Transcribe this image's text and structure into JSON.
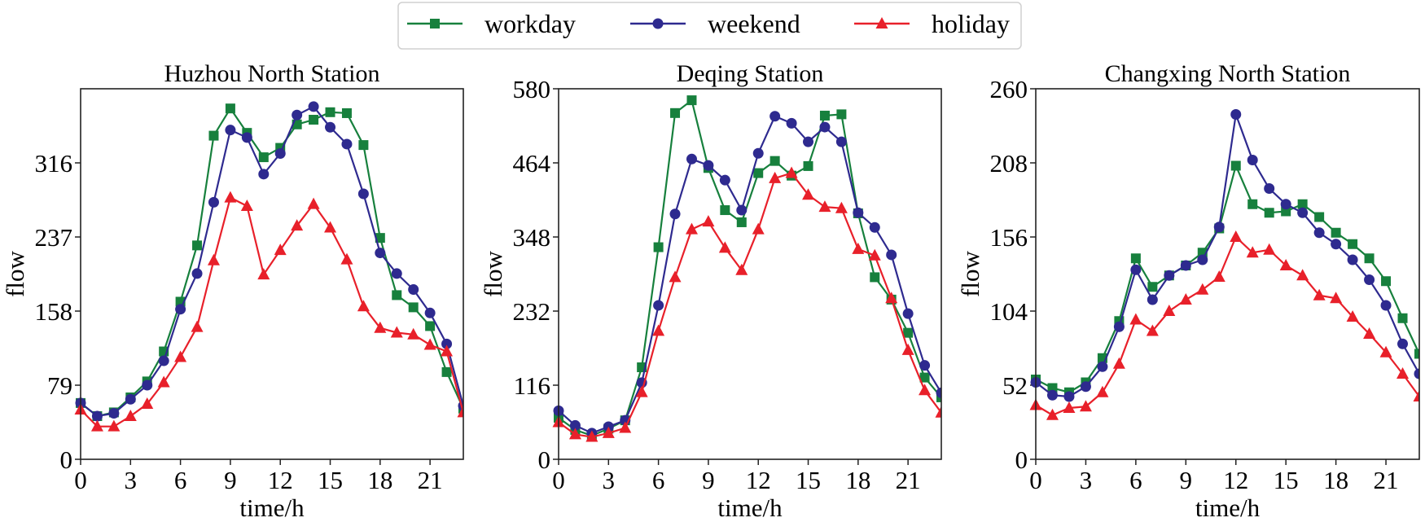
{
  "legend": {
    "position": "top-center",
    "entries": [
      {
        "label": "workday",
        "marker": "square",
        "color": "#17803d"
      },
      {
        "label": "weekend",
        "marker": "circle",
        "color": "#2e2a8f"
      },
      {
        "label": "holiday",
        "marker": "triangle",
        "color": "#e8202a"
      }
    ]
  },
  "chart_data": [
    {
      "type": "line",
      "title": "Huzhou North Station",
      "xlabel": "time/h",
      "ylabel": "flow",
      "xlim": [
        0,
        23
      ],
      "ylim": [
        0,
        395
      ],
      "xticks": [
        0,
        3,
        6,
        9,
        12,
        15,
        18,
        21
      ],
      "yticks": [
        0,
        79,
        158,
        237,
        316
      ],
      "grid": false,
      "x": [
        0,
        1,
        2,
        3,
        4,
        5,
        6,
        7,
        8,
        9,
        10,
        11,
        12,
        13,
        14,
        15,
        16,
        17,
        18,
        19,
        20,
        21,
        22,
        23
      ],
      "series": [
        {
          "name": "workday",
          "values": [
            60,
            46,
            50,
            66,
            83,
            115,
            168,
            228,
            345,
            374,
            348,
            322,
            332,
            357,
            362,
            370,
            369,
            335,
            236,
            175,
            162,
            142,
            93,
            54
          ]
        },
        {
          "name": "weekend",
          "values": [
            60,
            46,
            49,
            64,
            79,
            105,
            160,
            198,
            274,
            351,
            343,
            304,
            326,
            367,
            376,
            354,
            336,
            283,
            220,
            198,
            181,
            156,
            123,
            57
          ]
        },
        {
          "name": "holiday",
          "values": [
            53,
            35,
            35,
            46,
            59,
            82,
            109,
            141,
            212,
            279,
            270,
            197,
            223,
            249,
            272,
            247,
            213,
            163,
            140,
            135,
            133,
            122,
            115,
            50
          ]
        }
      ]
    },
    {
      "type": "line",
      "title": "Deqing Station",
      "xlabel": "time/h",
      "ylabel": "flow",
      "xlim": [
        0,
        23
      ],
      "ylim": [
        0,
        580
      ],
      "xticks": [
        0,
        3,
        6,
        9,
        12,
        15,
        18,
        21
      ],
      "yticks": [
        0,
        116,
        232,
        348,
        464,
        580
      ],
      "grid": false,
      "x": [
        0,
        1,
        2,
        3,
        4,
        5,
        6,
        7,
        8,
        9,
        10,
        11,
        12,
        13,
        14,
        15,
        16,
        17,
        18,
        19,
        20,
        21,
        22,
        23
      ],
      "series": [
        {
          "name": "workday",
          "values": [
            65,
            46,
            37,
            48,
            61,
            144,
            332,
            542,
            562,
            456,
            390,
            371,
            448,
            467,
            444,
            459,
            538,
            540,
            385,
            285,
            250,
            198,
            128,
            97
          ]
        },
        {
          "name": "weekend",
          "values": [
            76,
            53,
            41,
            51,
            61,
            120,
            241,
            384,
            470,
            460,
            437,
            390,
            479,
            537,
            526,
            497,
            520,
            497,
            386,
            363,
            320,
            228,
            147,
            104
          ]
        },
        {
          "name": "holiday",
          "values": [
            58,
            39,
            35,
            41,
            49,
            105,
            201,
            285,
            360,
            372,
            331,
            296,
            360,
            440,
            448,
            414,
            395,
            393,
            329,
            319,
            252,
            171,
            108,
            73
          ]
        }
      ]
    },
    {
      "type": "line",
      "title": "Changxing North Station",
      "xlabel": "time/h",
      "ylabel": "flow",
      "xlim": [
        0,
        23
      ],
      "ylim": [
        0,
        260
      ],
      "xticks": [
        0,
        3,
        6,
        9,
        12,
        15,
        18,
        21
      ],
      "yticks": [
        0,
        52,
        104,
        156,
        208,
        260
      ],
      "grid": false,
      "x": [
        0,
        1,
        2,
        3,
        4,
        5,
        6,
        7,
        8,
        9,
        10,
        11,
        12,
        13,
        14,
        15,
        16,
        17,
        18,
        19,
        20,
        21,
        22,
        23
      ],
      "series": [
        {
          "name": "workday",
          "values": [
            56,
            50,
            47,
            54,
            71,
            97,
            141,
            121,
            129,
            136,
            145,
            162,
            206,
            179,
            173,
            174,
            179,
            170,
            159,
            151,
            141,
            125,
            99,
            74
          ]
        },
        {
          "name": "weekend",
          "values": [
            54,
            45,
            44,
            51,
            65,
            93,
            133,
            112,
            129,
            136,
            140,
            163,
            242,
            210,
            190,
            179,
            173,
            159,
            151,
            140,
            126,
            108,
            81,
            60
          ]
        },
        {
          "name": "holiday",
          "values": [
            38,
            31,
            36,
            37,
            47,
            67,
            98,
            90,
            104,
            112,
            119,
            128,
            156,
            145,
            147,
            136,
            129,
            115,
            113,
            100,
            88,
            75,
            60,
            44
          ]
        }
      ]
    }
  ]
}
